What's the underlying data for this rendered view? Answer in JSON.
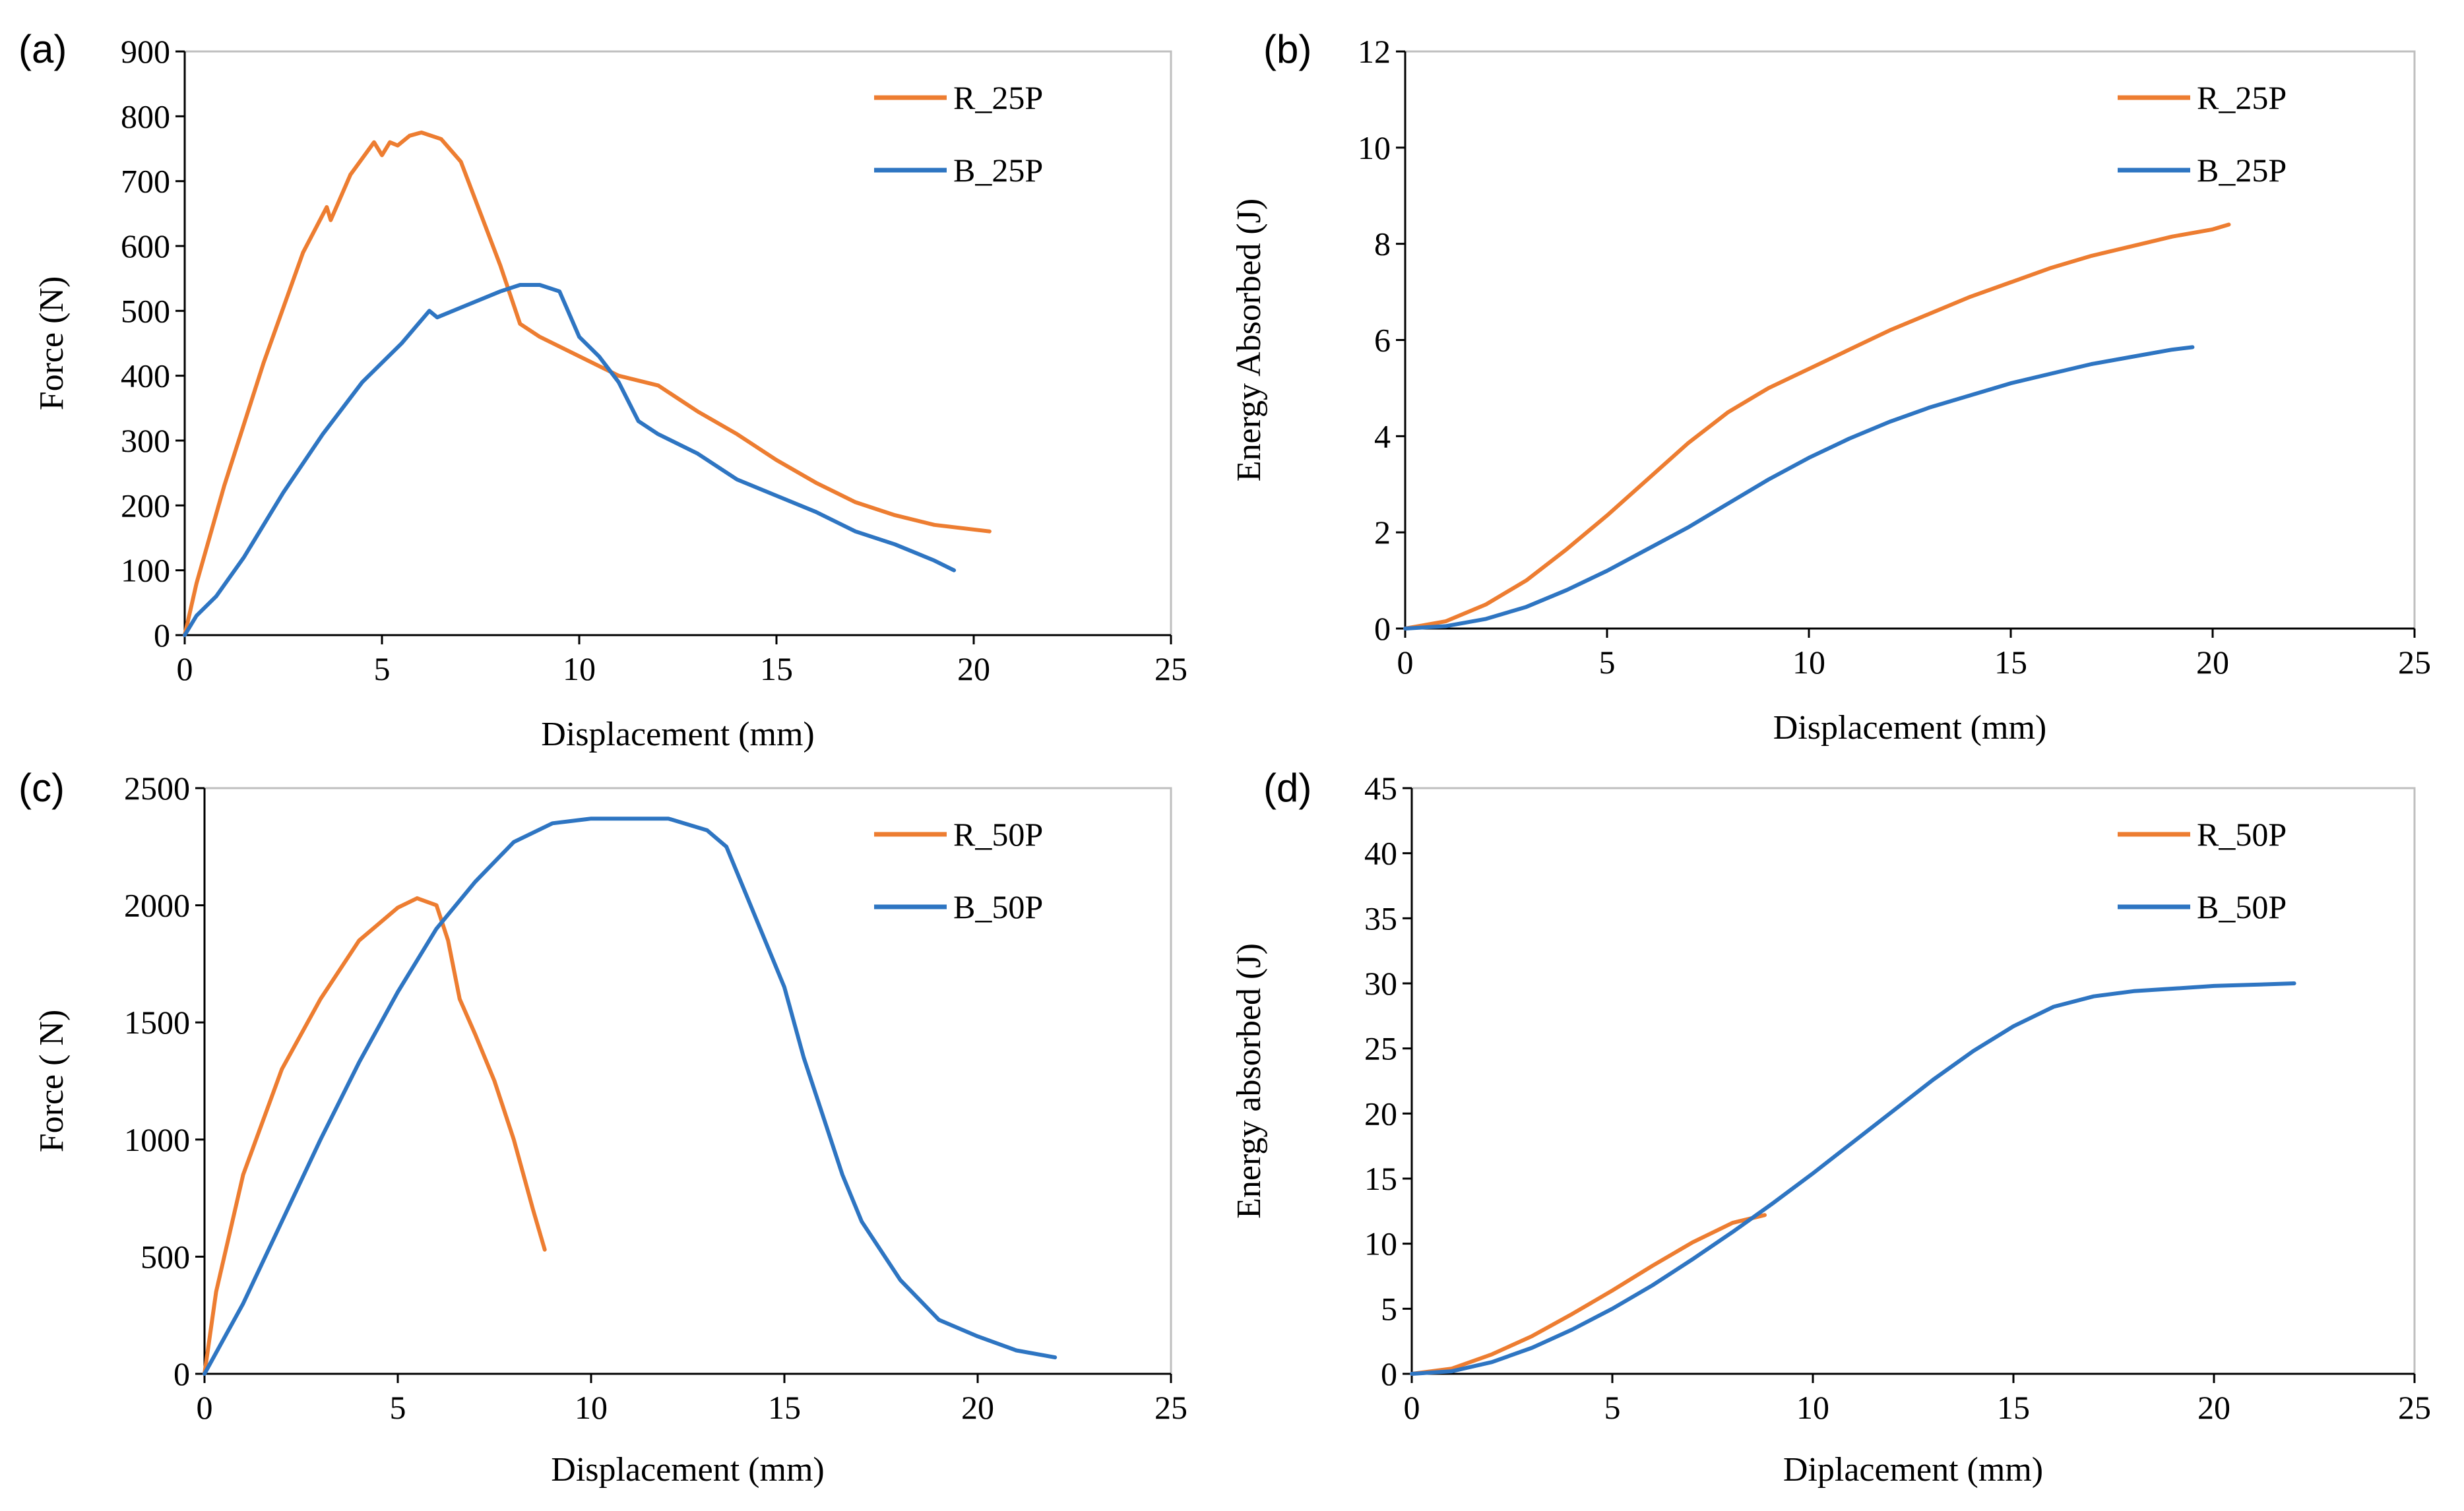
{
  "colors": {
    "orange": "#ED7D31",
    "blue": "#2E75C2"
  },
  "chart_data": [
    {
      "type": "line",
      "panel_label": "(a)",
      "xlabel": "Displacement (mm)",
      "ylabel": "Force (N)",
      "xlim": [
        0,
        25
      ],
      "ylim": [
        0,
        900
      ],
      "xticks": [
        0,
        5,
        10,
        15,
        20,
        25
      ],
      "yticks": [
        0,
        100,
        200,
        300,
        400,
        500,
        600,
        700,
        800,
        900
      ],
      "legend_position": "top-right",
      "series": [
        {
          "name": "R_25P",
          "color": "orange",
          "x": [
            0,
            0.3,
            1,
            2,
            3,
            3.6,
            3.7,
            4.2,
            4.8,
            5.0,
            5.2,
            5.4,
            5.7,
            6.0,
            6.5,
            7.0,
            7.5,
            8.0,
            8.5,
            9.0,
            10.0,
            11.0,
            12.0,
            13.0,
            14.0,
            15.0,
            16.0,
            17.0,
            18.0,
            19.0,
            20.4
          ],
          "y": [
            0,
            80,
            230,
            420,
            590,
            660,
            640,
            710,
            760,
            740,
            760,
            755,
            770,
            775,
            765,
            730,
            650,
            570,
            480,
            460,
            430,
            400,
            385,
            345,
            310,
            270,
            235,
            205,
            185,
            170,
            160
          ]
        },
        {
          "name": "B_25P",
          "color": "blue",
          "x": [
            0,
            0.3,
            0.8,
            1.5,
            2.5,
            3.5,
            4.5,
            5.5,
            6.2,
            6.4,
            7.0,
            8.0,
            8.5,
            9.0,
            9.5,
            10.0,
            10.5,
            11.0,
            11.5,
            12.0,
            13.0,
            14.0,
            15.0,
            16.0,
            17.0,
            18.0,
            19.0,
            19.5
          ],
          "y": [
            0,
            30,
            60,
            120,
            220,
            310,
            390,
            450,
            500,
            490,
            505,
            530,
            540,
            540,
            530,
            460,
            430,
            390,
            330,
            310,
            280,
            240,
            215,
            190,
            160,
            140,
            115,
            100
          ]
        }
      ]
    },
    {
      "type": "line",
      "panel_label": "(b)",
      "xlabel": "Displacement (mm)",
      "ylabel": "Energy Absorbed (J)",
      "xlim": [
        0,
        25
      ],
      "ylim": [
        0,
        12
      ],
      "xticks": [
        0,
        5,
        10,
        15,
        20,
        25
      ],
      "yticks": [
        0,
        2,
        4,
        6,
        8,
        10,
        12
      ],
      "legend_position": "top-right",
      "series": [
        {
          "name": "R_25P",
          "color": "orange",
          "x": [
            0,
            1,
            2,
            3,
            4,
            5,
            6,
            7,
            8,
            9,
            10,
            11,
            12,
            13,
            14,
            15,
            16,
            17,
            18,
            19,
            20,
            20.4
          ],
          "y": [
            0,
            0.15,
            0.5,
            1.0,
            1.65,
            2.35,
            3.1,
            3.85,
            4.5,
            5.0,
            5.4,
            5.8,
            6.2,
            6.55,
            6.9,
            7.2,
            7.5,
            7.75,
            7.95,
            8.15,
            8.3,
            8.4
          ]
        },
        {
          "name": "B_25P",
          "color": "blue",
          "x": [
            0,
            1,
            2,
            3,
            4,
            5,
            6,
            7,
            8,
            9,
            10,
            11,
            12,
            13,
            14,
            15,
            16,
            17,
            18,
            19,
            19.5
          ],
          "y": [
            0,
            0.05,
            0.2,
            0.45,
            0.8,
            1.2,
            1.65,
            2.1,
            2.6,
            3.1,
            3.55,
            3.95,
            4.3,
            4.6,
            4.85,
            5.1,
            5.3,
            5.5,
            5.65,
            5.8,
            5.85
          ]
        }
      ]
    },
    {
      "type": "line",
      "panel_label": "(c)",
      "xlabel": "Displacement (mm)",
      "ylabel": "Force ( N)",
      "xlim": [
        0,
        25
      ],
      "ylim": [
        0,
        2500
      ],
      "xticks": [
        0,
        5,
        10,
        15,
        20,
        25
      ],
      "yticks": [
        0,
        500,
        1000,
        1500,
        2000,
        2500
      ],
      "legend_position": "top-right",
      "series": [
        {
          "name": "R_50P",
          "color": "orange",
          "x": [
            0,
            0.3,
            1,
            2,
            3,
            4,
            5,
            5.5,
            6.0,
            6.3,
            6.6,
            7.0,
            7.5,
            8.0,
            8.5,
            8.8
          ],
          "y": [
            0,
            350,
            850,
            1300,
            1600,
            1850,
            1990,
            2030,
            2000,
            1850,
            1600,
            1450,
            1250,
            1000,
            700,
            530
          ]
        },
        {
          "name": "B_50P",
          "color": "blue",
          "x": [
            0,
            1,
            2,
            3,
            4,
            5,
            6,
            7,
            8,
            9,
            10,
            11,
            12,
            13,
            13.5,
            14,
            15,
            15.5,
            16,
            16.5,
            17,
            18,
            19,
            20,
            21,
            22
          ],
          "y": [
            0,
            300,
            650,
            1000,
            1330,
            1630,
            1900,
            2100,
            2270,
            2350,
            2370,
            2370,
            2370,
            2320,
            2250,
            2050,
            1650,
            1350,
            1100,
            850,
            650,
            400,
            230,
            160,
            100,
            70
          ]
        }
      ]
    },
    {
      "type": "line",
      "panel_label": "(d)",
      "xlabel": "Diplacement (mm)",
      "ylabel": "Energy absorbed (J)",
      "xlim": [
        0,
        25
      ],
      "ylim": [
        0,
        45
      ],
      "xticks": [
        0,
        5,
        10,
        15,
        20,
        25
      ],
      "yticks": [
        0,
        5,
        10,
        15,
        20,
        25,
        30,
        35,
        40,
        45
      ],
      "legend_position": "top-right",
      "series": [
        {
          "name": "R_50P",
          "color": "orange",
          "x": [
            0,
            1,
            2,
            3,
            4,
            5,
            6,
            7,
            8,
            8.8
          ],
          "y": [
            0,
            0.4,
            1.5,
            2.9,
            4.6,
            6.4,
            8.3,
            10.1,
            11.6,
            12.2
          ]
        },
        {
          "name": "B_50P",
          "color": "blue",
          "x": [
            0,
            1,
            2,
            3,
            4,
            5,
            6,
            7,
            8,
            9,
            10,
            11,
            12,
            13,
            14,
            15,
            16,
            17,
            18,
            19,
            20,
            21,
            22
          ],
          "y": [
            0,
            0.2,
            0.9,
            2.0,
            3.4,
            5.0,
            6.8,
            8.8,
            10.9,
            13.1,
            15.4,
            17.8,
            20.2,
            22.6,
            24.8,
            26.7,
            28.2,
            29.0,
            29.4,
            29.6,
            29.8,
            29.9,
            30.0
          ]
        }
      ]
    }
  ]
}
